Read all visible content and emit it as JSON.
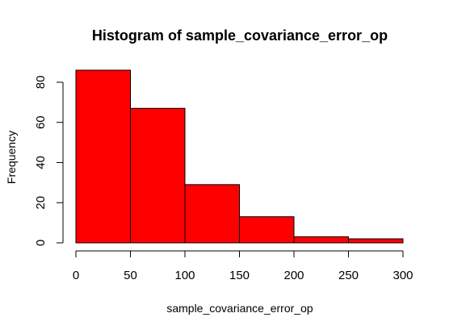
{
  "chart_data": {
    "type": "bar",
    "title": "Histogram of sample_covariance_error_op",
    "xlabel": "sample_covariance_error_op",
    "ylabel": "Frequency",
    "bins": [
      {
        "start": 0,
        "end": 50,
        "count": 86
      },
      {
        "start": 50,
        "end": 100,
        "count": 67
      },
      {
        "start": 100,
        "end": 150,
        "count": 29
      },
      {
        "start": 150,
        "end": 200,
        "count": 13
      },
      {
        "start": 200,
        "end": 250,
        "count": 3
      },
      {
        "start": 250,
        "end": 300,
        "count": 2
      }
    ],
    "x_ticks": [
      0,
      50,
      100,
      150,
      200,
      250,
      300
    ],
    "y_ticks": [
      0,
      20,
      40,
      60,
      80
    ],
    "xlim": [
      0,
      300
    ],
    "ylim": [
      0,
      86
    ],
    "bar_color": "#ff0000",
    "bar_border_color": "#000000",
    "grid": false,
    "legend": "none"
  }
}
